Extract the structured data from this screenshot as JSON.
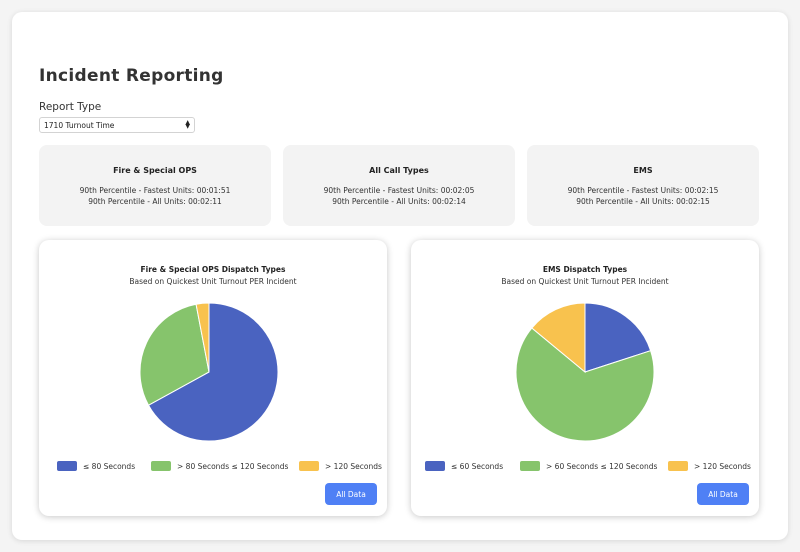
{
  "page": {
    "title": "Incident Reporting"
  },
  "report_type": {
    "label": "Report Type",
    "selected": "1710 Turnout Time"
  },
  "summary_cards": [
    {
      "title": "Fire & Special OPS",
      "fastest": "90th Percentile - Fastest Units: 00:01:51",
      "all": "90th Percentile - All Units: 00:02:11"
    },
    {
      "title": "All Call Types",
      "fastest": "90th Percentile - Fastest Units: 00:02:05",
      "all": "90th Percentile - All Units: 00:02:14"
    },
    {
      "title": "EMS",
      "fastest": "90th Percentile - Fastest Units: 00:02:15",
      "all": "90th Percentile - All Units: 00:02:15"
    }
  ],
  "colors": {
    "blue": "#4a63c0",
    "green": "#86c46c",
    "yellow": "#f8c24e",
    "button": "#4f80f5"
  },
  "button_label": "All Data",
  "chart_data": [
    {
      "type": "pie",
      "title": "Fire & Special OPS Dispatch Types",
      "subtitle": "Based on Quickest Unit Turnout PER Incident",
      "labels": [
        "≤ 80 Seconds",
        "> 80 Seconds ≤ 120 Seconds",
        "> 120 Seconds"
      ],
      "values": [
        67,
        30,
        3
      ],
      "colors": [
        "#4a63c0",
        "#86c46c",
        "#f8c24e"
      ],
      "legend": "bottom"
    },
    {
      "type": "pie",
      "title": "EMS Dispatch Types",
      "subtitle": "Based on Quickest Unit Turnout PER Incident",
      "labels": [
        "≤ 60 Seconds",
        "> 60 Seconds ≤ 120 Seconds",
        "> 120 Seconds"
      ],
      "values": [
        20,
        66,
        14
      ],
      "colors": [
        "#4a63c0",
        "#86c46c",
        "#f8c24e"
      ],
      "legend": "bottom"
    }
  ]
}
